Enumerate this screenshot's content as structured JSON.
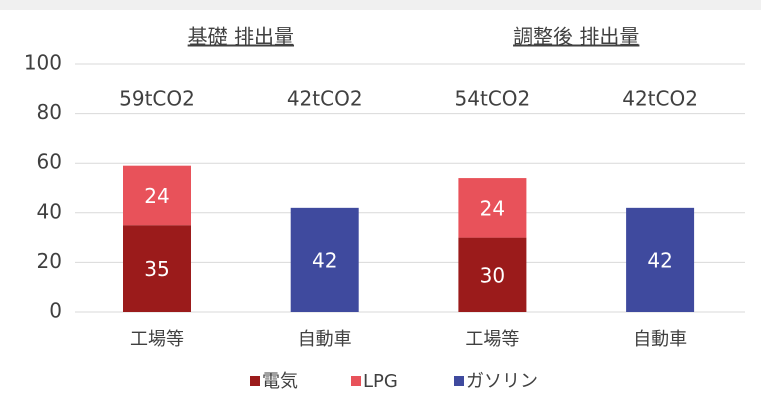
{
  "chart_data": {
    "type": "stacked_bar",
    "group_labels": [
      "基礎 排出量",
      "調整後 排出量"
    ],
    "annotations": [
      "59tCO2",
      "42tCO2",
      "54tCO2",
      "42tCO2"
    ],
    "categories": [
      "工場等",
      "自動車",
      "工場等",
      "自動車"
    ],
    "series": [
      {
        "name": "電気",
        "color": "#9b1b1b",
        "values": [
          35,
          null,
          30,
          null
        ]
      },
      {
        "name": "LPG",
        "color": "#e8525a",
        "values": [
          24,
          null,
          24,
          null
        ]
      },
      {
        "name": "ガソリン",
        "color": "#3f4a9e",
        "values": [
          null,
          42,
          null,
          42
        ]
      }
    ],
    "ylim": [
      0,
      100
    ],
    "yticks": [
      0,
      20,
      40,
      60,
      80,
      100
    ],
    "grid": true,
    "legend": "bottom"
  }
}
